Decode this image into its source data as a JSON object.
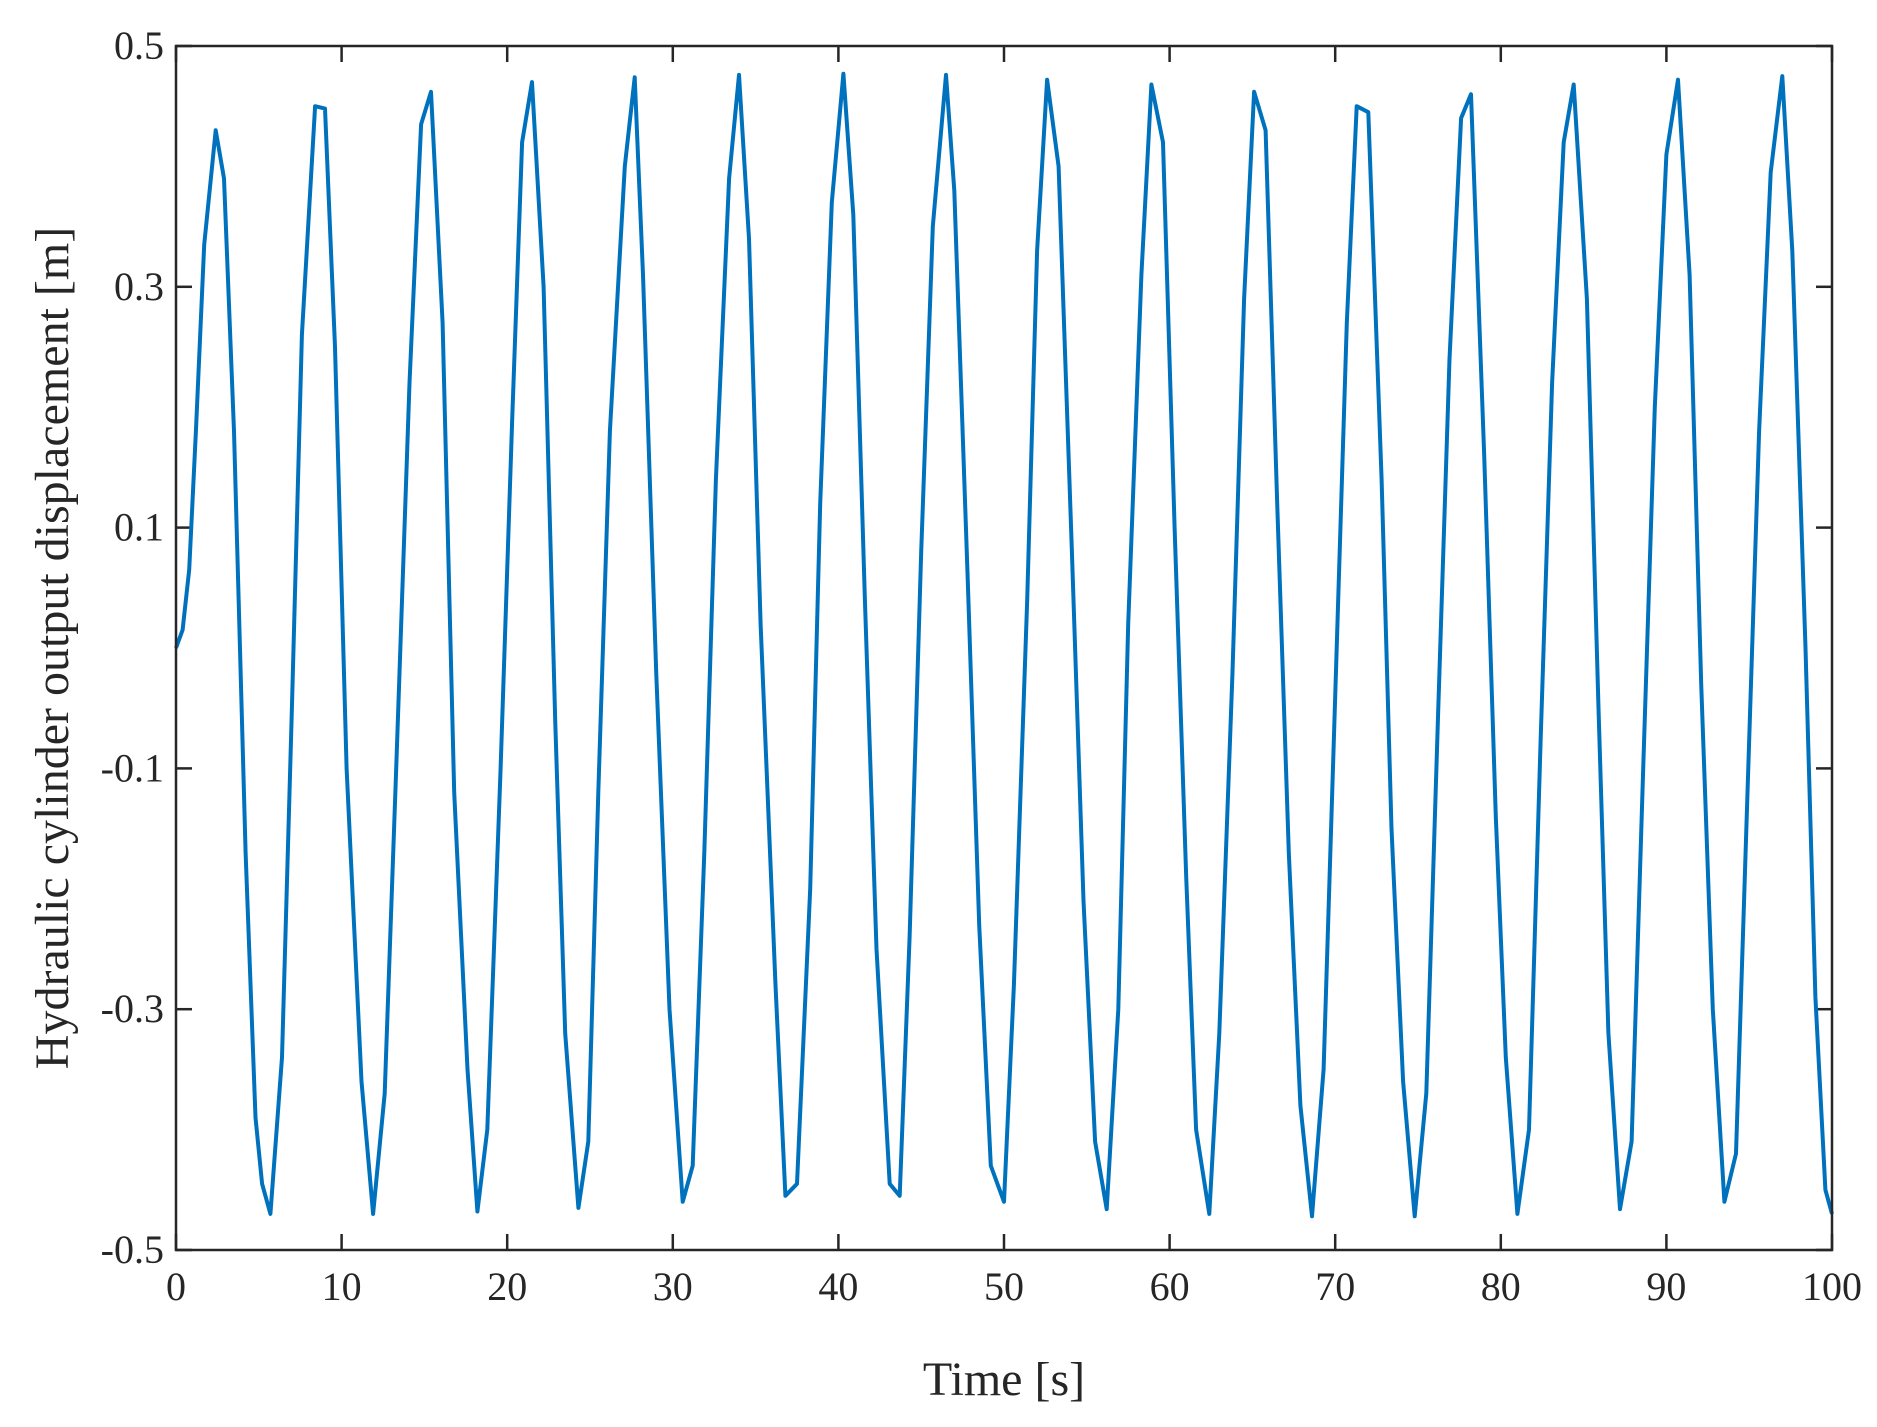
{
  "chart_data": {
    "type": "line",
    "title": "",
    "xlabel": "Time [s]",
    "ylabel": "Hydraulic cylinder output displacement [m]",
    "xlim": [
      0,
      100
    ],
    "ylim": [
      -0.5,
      0.5
    ],
    "xticks": [
      0,
      10,
      20,
      30,
      40,
      50,
      60,
      70,
      80,
      90,
      100
    ],
    "yticks": [
      -0.5,
      -0.3,
      -0.1,
      0.1,
      0.3,
      0.5
    ],
    "xtick_labels": [
      "0",
      "10",
      "20",
      "30",
      "40",
      "50",
      "60",
      "70",
      "80",
      "90",
      "100"
    ],
    "ytick_labels": [
      "-0.5",
      "-0.3",
      "-0.1",
      "0.1",
      "0.3",
      "0.5"
    ],
    "grid": false,
    "line_color": "#0072BD",
    "series": [
      {
        "x": [
          0,
          0.4,
          0.8,
          1.2,
          1.7,
          2.4,
          2.9,
          3.5,
          4.2,
          4.8,
          5.2,
          5.7,
          6.4,
          7.0,
          7.6,
          8.4,
          9.0,
          9.6,
          10.3,
          11.2,
          11.9,
          12.6,
          13.3,
          14.1,
          14.8,
          15.4,
          16.1,
          16.8,
          17.6,
          18.2,
          18.8,
          19.6,
          20.3,
          20.9,
          21.5,
          22.2,
          22.9,
          23.5,
          24.3,
          24.9,
          25.5,
          26.2,
          27.1,
          27.7,
          28.2,
          29.0,
          29.8,
          30.6,
          31.2,
          31.9,
          32.6,
          33.4,
          34.0,
          34.6,
          35.3,
          36.2,
          36.8,
          37.5,
          38.3,
          38.9,
          39.6,
          40.3,
          40.9,
          41.6,
          42.3,
          43.1,
          43.7,
          44.3,
          45.0,
          45.7,
          46.5,
          47.0,
          47.8,
          48.5,
          49.2,
          50.0,
          50.6,
          51.4,
          52.0,
          52.6,
          53.3,
          54.1,
          54.8,
          55.5,
          56.2,
          56.9,
          57.5,
          58.3,
          58.9,
          59.6,
          60.3,
          61.0,
          61.6,
          62.4,
          63.0,
          63.8,
          64.5,
          65.1,
          65.8,
          66.5,
          67.2,
          67.9,
          68.6,
          69.3,
          70.0,
          70.7,
          71.3,
          72.0,
          72.8,
          73.4,
          74.1,
          74.8,
          75.5,
          76.2,
          76.9,
          77.6,
          78.2,
          79.0,
          79.7,
          80.3,
          81.0,
          81.7,
          82.4,
          83.1,
          83.8,
          84.4,
          85.2,
          85.9,
          86.5,
          87.2,
          87.9,
          88.6,
          89.3,
          90.0,
          90.7,
          91.4,
          92.1,
          92.8,
          93.5,
          94.2,
          94.9,
          95.6,
          96.3,
          97.0,
          97.6,
          98.4,
          99.0,
          99.6,
          100.0
        ],
        "y": [
          0.0,
          0.015,
          0.065,
          0.18,
          0.335,
          0.43,
          0.39,
          0.18,
          -0.17,
          -0.39,
          -0.445,
          -0.47,
          -0.34,
          -0.05,
          0.26,
          0.45,
          0.448,
          0.25,
          -0.1,
          -0.36,
          -0.47,
          -0.37,
          -0.1,
          0.22,
          0.435,
          0.462,
          0.27,
          -0.12,
          -0.35,
          -0.468,
          -0.4,
          -0.1,
          0.19,
          0.42,
          0.47,
          0.3,
          -0.06,
          -0.32,
          -0.465,
          -0.41,
          -0.12,
          0.18,
          0.4,
          0.474,
          0.31,
          -0.02,
          -0.3,
          -0.46,
          -0.43,
          -0.17,
          0.14,
          0.39,
          0.476,
          0.34,
          0.02,
          -0.28,
          -0.455,
          -0.445,
          -0.2,
          0.12,
          0.37,
          0.477,
          0.36,
          0.04,
          -0.25,
          -0.445,
          -0.455,
          -0.24,
          0.08,
          0.35,
          0.476,
          0.38,
          0.06,
          -0.23,
          -0.43,
          -0.46,
          -0.28,
          0.04,
          0.33,
          0.472,
          0.4,
          0.08,
          -0.21,
          -0.41,
          -0.466,
          -0.3,
          0.02,
          0.31,
          0.468,
          0.42,
          0.1,
          -0.19,
          -0.4,
          -0.47,
          -0.32,
          -0.02,
          0.29,
          0.462,
          0.43,
          0.12,
          -0.17,
          -0.38,
          -0.472,
          -0.35,
          -0.04,
          0.27,
          0.45,
          0.445,
          0.14,
          -0.15,
          -0.36,
          -0.472,
          -0.37,
          -0.06,
          0.24,
          0.44,
          0.46,
          0.16,
          -0.14,
          -0.34,
          -0.47,
          -0.4,
          -0.08,
          0.22,
          0.42,
          0.468,
          0.29,
          -0.05,
          -0.32,
          -0.466,
          -0.41,
          -0.1,
          0.2,
          0.41,
          0.472,
          0.31,
          -0.03,
          -0.3,
          -0.46,
          -0.42,
          -0.12,
          0.18,
          0.395,
          0.475,
          0.33,
          0.0,
          -0.29,
          -0.45,
          -0.47
        ]
      }
    ]
  }
}
